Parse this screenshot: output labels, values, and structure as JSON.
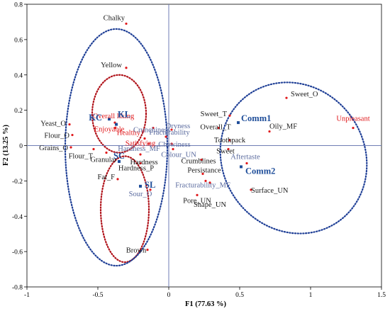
{
  "chart_data": {
    "type": "scatter",
    "title": "",
    "xlabel": "F1 (77.63 %)",
    "ylabel": "F2 (13.25 %)",
    "xlim": [
      -1,
      1.5
    ],
    "ylim": [
      -0.8,
      0.8
    ],
    "x_ticks": [
      "-1",
      "-0.5",
      "0",
      "0.5",
      "1",
      "1.5"
    ],
    "x_tick_values": [
      -1,
      -0.5,
      0,
      0.5,
      1,
      1.5
    ],
    "y_ticks": [
      "-0.8",
      "-0.6",
      "-0.4",
      "-0.2",
      "0",
      "0.2",
      "0.4",
      "0.6",
      "0.8"
    ],
    "y_tick_values": [
      -0.8,
      -0.6,
      -0.4,
      -0.2,
      0,
      0.2,
      0.4,
      0.6,
      0.8
    ],
    "grid": false,
    "colors": {
      "attribute": "#e0191c",
      "attribute_label_dark": "#1a1a1a",
      "attribute_label_light": "#5a6a9e",
      "sample": "#1f4e9a",
      "reference_line": "#6f7db5",
      "ellipse_red": "#b0121a",
      "ellipse_blue": "#1f3f96"
    },
    "series": [
      {
        "marker_color": "#e0191c",
        "points": [
          {
            "label": "Chalky",
            "x": -0.3,
            "y": 0.69,
            "label_style": "dark"
          },
          {
            "label": "Yellow",
            "x": -0.3,
            "y": 0.44,
            "label_style": "dark"
          },
          {
            "label": "Yeast_O",
            "x": -0.7,
            "y": 0.12,
            "label_style": "dark"
          },
          {
            "label": "Flour_O",
            "x": -0.68,
            "y": 0.06,
            "label_style": "dark"
          },
          {
            "label": "Grains_O",
            "x": -0.69,
            "y": -0.01,
            "label_style": "dark"
          },
          {
            "label": "Flour_T",
            "x": -0.53,
            "y": -0.02,
            "label_style": "dark"
          },
          {
            "label": "Granular",
            "x": -0.44,
            "y": -0.04,
            "label_style": "dark"
          },
          {
            "label": "Hardness",
            "x": -0.2,
            "y": -0.05,
            "label_style": "dark"
          },
          {
            "label": "Hardness_P",
            "x": -0.2,
            "y": -0.1,
            "label_style": "dark"
          },
          {
            "label": "Fat_F",
            "x": -0.36,
            "y": -0.19,
            "label_style": "dark"
          },
          {
            "label": "Brown",
            "x": -0.15,
            "y": -0.59,
            "label_style": "dark"
          },
          {
            "label": "Overall liking",
            "x": -0.38,
            "y": 0.13,
            "label_style": "red"
          },
          {
            "label": "Enjoyable",
            "x": -0.38,
            "y": 0.1,
            "label_style": "red"
          },
          {
            "label": "Healthy",
            "x": -0.18,
            "y": 0.08,
            "label_style": "red"
          },
          {
            "label": "Satisfying",
            "x": -0.17,
            "y": 0.04,
            "label_style": "red"
          },
          {
            "label": "Hardness_MF",
            "x": -0.14,
            "y": 0.01,
            "label_style": "light"
          },
          {
            "label": "Crunchiness",
            "x": -0.11,
            "y": 0.1,
            "label_style": "light"
          },
          {
            "label": "Fracturability",
            "x": -0.02,
            "y": 0.05,
            "label_style": "light"
          },
          {
            "label": "Dryness",
            "x": 0.02,
            "y": 0.09,
            "label_style": "light"
          },
          {
            "label": "Chewiness",
            "x": 0.02,
            "y": 0.01,
            "label_style": "light"
          },
          {
            "label": "Colour_UN",
            "x": 0.03,
            "y": -0.02,
            "label_style": "light"
          },
          {
            "label": "Crumblines",
            "x": 0.23,
            "y": -0.08,
            "label_style": "dark"
          },
          {
            "label": "Persistance",
            "x": 0.24,
            "y": -0.16,
            "label_style": "dark"
          },
          {
            "label": "Fracturability_MF",
            "x": 0.26,
            "y": -0.2,
            "label_style": "light"
          },
          {
            "label": "Pore_UN",
            "x": 0.2,
            "y": -0.28,
            "label_style": "dark"
          },
          {
            "label": "Shape_UN",
            "x": 0.29,
            "y": -0.21,
            "label_style": "dark"
          },
          {
            "label": "Sweet_T",
            "x": 0.43,
            "y": 0.17,
            "label_style": "dark"
          },
          {
            "label": "Overall_T",
            "x": 0.35,
            "y": 0.1,
            "label_style": "dark"
          },
          {
            "label": "Toothpack",
            "x": 0.43,
            "y": 0.03,
            "label_style": "dark"
          },
          {
            "label": "Sweet",
            "x": 0.42,
            "y": -0.02,
            "label_style": "dark"
          },
          {
            "label": "Aftertaste",
            "x": 0.55,
            "y": -0.1,
            "label_style": "light"
          },
          {
            "label": "Surface_UN",
            "x": 0.58,
            "y": -0.25,
            "label_style": "dark"
          },
          {
            "label": "Sweet_O",
            "x": 0.83,
            "y": 0.27,
            "label_style": "dark"
          },
          {
            "label": "Oily_MF",
            "x": 0.71,
            "y": 0.08,
            "label_style": "dark"
          },
          {
            "label": "Unpleasant",
            "x": 1.3,
            "y": 0.1,
            "label_style": "red"
          },
          {
            "label": "Sour_O",
            "x": -0.13,
            "y": -0.25,
            "label_style": "light"
          }
        ]
      },
      {
        "marker_color": "#1f4e9a",
        "points": [
          {
            "label": "KL",
            "x": -0.37,
            "y": 0.12
          },
          {
            "label": "KC",
            "x": -0.42,
            "y": 0.15
          },
          {
            "label": "SC",
            "x": -0.35,
            "y": -0.09
          },
          {
            "label": "SL",
            "x": -0.2,
            "y": -0.23
          },
          {
            "label": "Comm1",
            "x": 0.49,
            "y": 0.13
          },
          {
            "label": "Comm2",
            "x": 0.51,
            "y": -0.12
          }
        ]
      }
    ],
    "ellipses": [
      {
        "color": "red",
        "cx": -0.35,
        "cy": 0.18,
        "rx": 0.19,
        "ry": 0.22
      },
      {
        "color": "red",
        "cx": -0.31,
        "cy": -0.36,
        "rx": 0.17,
        "ry": 0.3
      },
      {
        "color": "blue",
        "cx": -0.37,
        "cy": -0.01,
        "rx": 0.36,
        "ry": 0.67
      },
      {
        "color": "blue",
        "cx": 0.88,
        "cy": -0.07,
        "rx": 0.5,
        "ry": 0.44,
        "rotation_deg": 35
      }
    ]
  }
}
